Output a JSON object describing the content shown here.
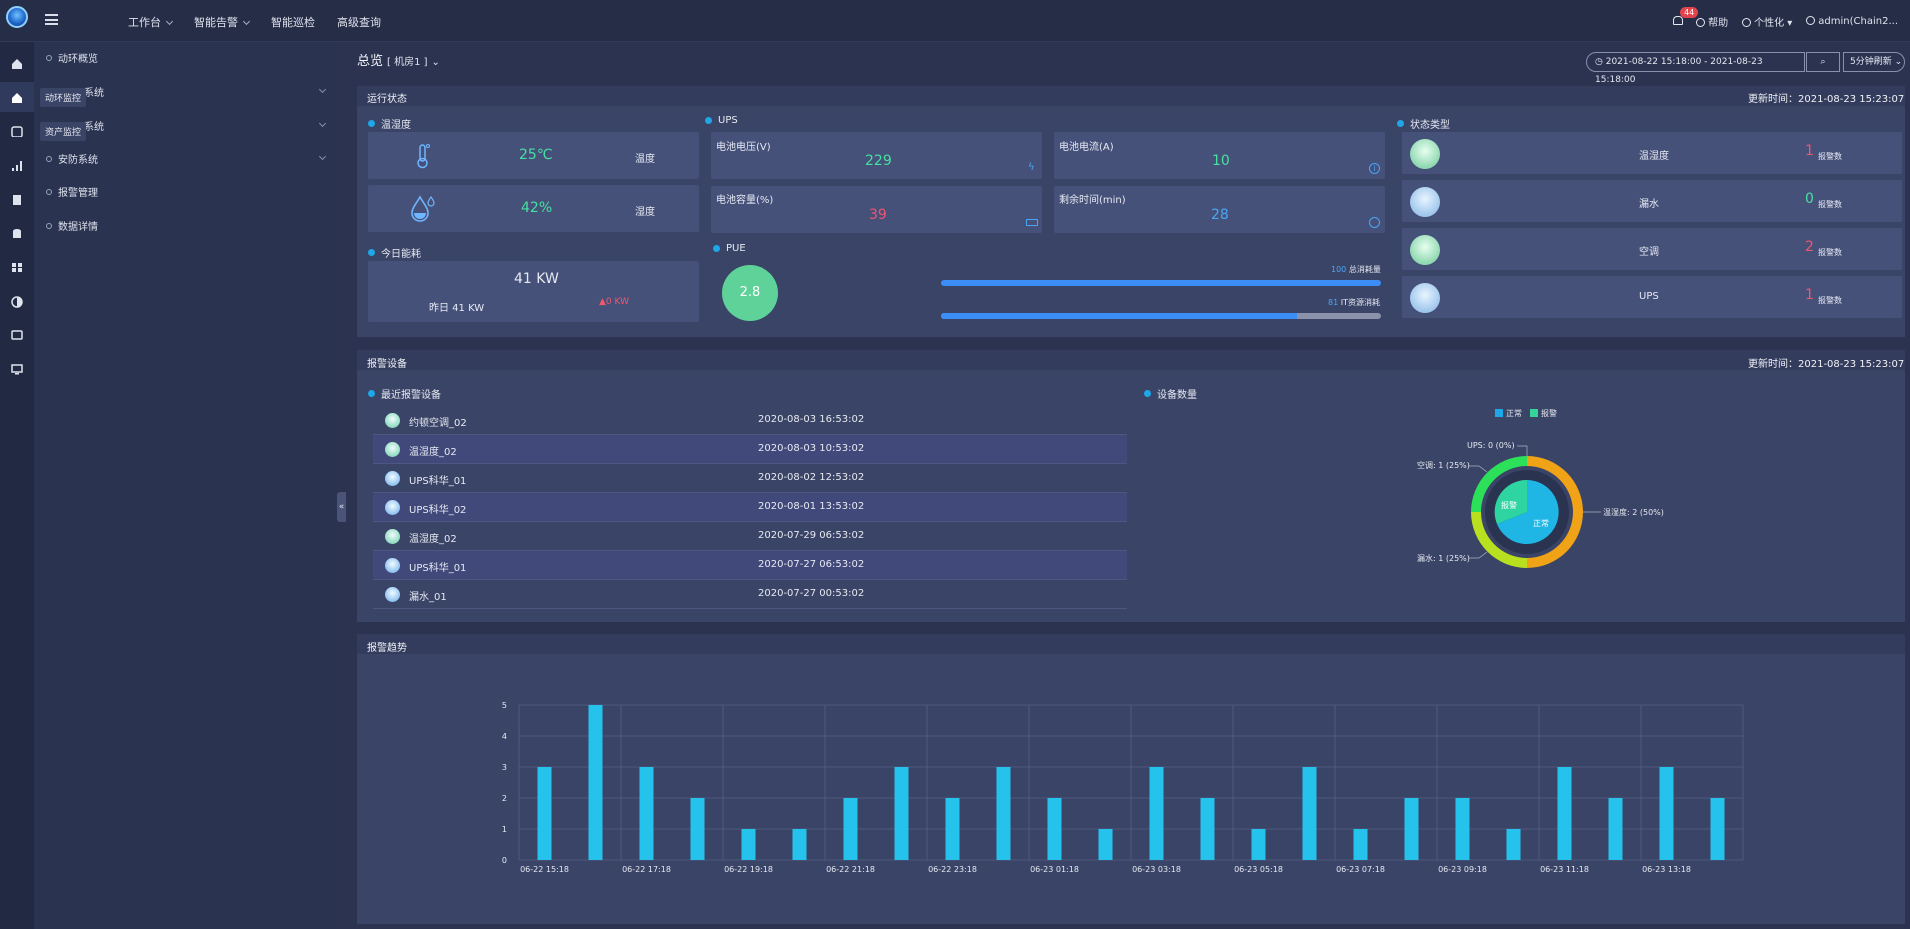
{
  "topnav": {
    "items": [
      "工作台",
      "智能告警",
      "智能巡检",
      "高级查询"
    ]
  },
  "topright": {
    "bell_count": "44",
    "help": "帮助",
    "personal": "个性化",
    "user": "admin(Chain2..."
  },
  "sidebar": {
    "items": [
      {
        "label": "动环概览"
      },
      {
        "label": "系统"
      },
      {
        "label": "系统"
      },
      {
        "label": "安防系统"
      },
      {
        "label": "报警管理"
      },
      {
        "label": "数据详情"
      }
    ],
    "tooltips": [
      "动环监控",
      "资产监控"
    ]
  },
  "header": {
    "title": "总览",
    "room": "[ 机房1 ]"
  },
  "controls": {
    "daterange": "2021-08-22 15:18:00  -  2021-08-23 15:18:00",
    "refresh": "5分钟刷新"
  },
  "run_status": {
    "title": "运行状态",
    "updated": "更新时间：2021-08-23 15:23:07",
    "temp_humidity": {
      "title": "温湿度",
      "temp_value": "25℃",
      "temp_label": "温度",
      "hum_value": "42%",
      "hum_label": "湿度"
    },
    "ups": {
      "title": "UPS",
      "battery_voltage_label": "电池电压(V)",
      "battery_voltage": "229",
      "battery_current_label": "电池电流(A)",
      "battery_current": "10",
      "battery_capacity_label": "电池容量(%)",
      "battery_capacity": "39",
      "remaining_label": "剩余时间(min)",
      "remaining": "28"
    },
    "energy": {
      "title": "今日能耗",
      "value": "41 KW",
      "yesterday": "昨日 41 KW",
      "delta": "▲0 KW"
    },
    "pue": {
      "title": "PUE",
      "value": "2.8",
      "total_label": "总消耗量",
      "total_value": "100",
      "total_fraction": 1.0,
      "it_label": "IT资源消耗",
      "it_value": "81",
      "it_fraction": 0.81
    },
    "status_types": {
      "title": "状态类型",
      "unit": "报警数",
      "items": [
        {
          "name": "温湿度",
          "count": "1",
          "color": "#f0566e"
        },
        {
          "name": "漏水",
          "count": "0",
          "color": "#46e0a0"
        },
        {
          "name": "空调",
          "count": "2",
          "color": "#f0566e"
        },
        {
          "name": "UPS",
          "count": "1",
          "color": "#f0566e"
        }
      ]
    }
  },
  "alarm_devices": {
    "title": "报警设备",
    "updated": "更新时间：2021-08-23 15:23:07",
    "recent_title": "最近报警设备",
    "rows": [
      {
        "name": "约顿空调_02",
        "time": "2020-08-03 16:53:02"
      },
      {
        "name": "温湿度_02",
        "time": "2020-08-03 10:53:02"
      },
      {
        "name": "UPS科华_01",
        "time": "2020-08-02 12:53:02"
      },
      {
        "name": "UPS科华_02",
        "time": "2020-08-01 13:53:02"
      },
      {
        "name": "温湿度_02",
        "time": "2020-07-29 06:53:02"
      },
      {
        "name": "UPS科华_01",
        "time": "2020-07-27 06:53:02"
      },
      {
        "name": "漏水_01",
        "time": "2020-07-27 00:53:02"
      }
    ],
    "count_title": "设备数量",
    "legend": [
      "正常",
      "报警"
    ],
    "donut_labels": {
      "ups": "UPS: 0 (0%)",
      "ac": "空调: 1 (25%)",
      "th": "温湿度: 2 (50%)",
      "leak": "漏水: 1 (25%)",
      "inner_normal": "正常",
      "inner_alarm": "报警"
    }
  },
  "chart_data": {
    "type": "bar",
    "title": "报警趋势",
    "categories": [
      "06-22 15:18",
      "",
      "06-22 17:18",
      "",
      "06-22 19:18",
      "",
      "06-22 21:18",
      "",
      "06-22 23:18",
      "",
      "06-23 01:18",
      "",
      "06-23 03:18",
      "",
      "06-23 05:18",
      "",
      "06-23 07:18",
      "",
      "06-23 09:18",
      "",
      "06-23 11:18",
      "",
      "06-23 13:18",
      ""
    ],
    "values": [
      3,
      5,
      3,
      2,
      1,
      1,
      2,
      3,
      2,
      3,
      2,
      1,
      3,
      2,
      1,
      3,
      1,
      2,
      2,
      1,
      3,
      2,
      3,
      2
    ],
    "ylim": [
      0,
      5
    ],
    "yticks": [
      "0",
      "1",
      "2",
      "3",
      "4",
      "5"
    ],
    "xticks": [
      "06-22 15:18",
      "06-22 17:18",
      "06-22 19:18",
      "06-22 21:18",
      "06-22 23:18",
      "06-23 01:18",
      "06-23 03:18",
      "06-23 05:18",
      "06-23 07:18",
      "06-23 09:18",
      "06-23 11:18",
      "06-23 13:18"
    ],
    "grid": true,
    "bar_color": "#25c3ec"
  }
}
